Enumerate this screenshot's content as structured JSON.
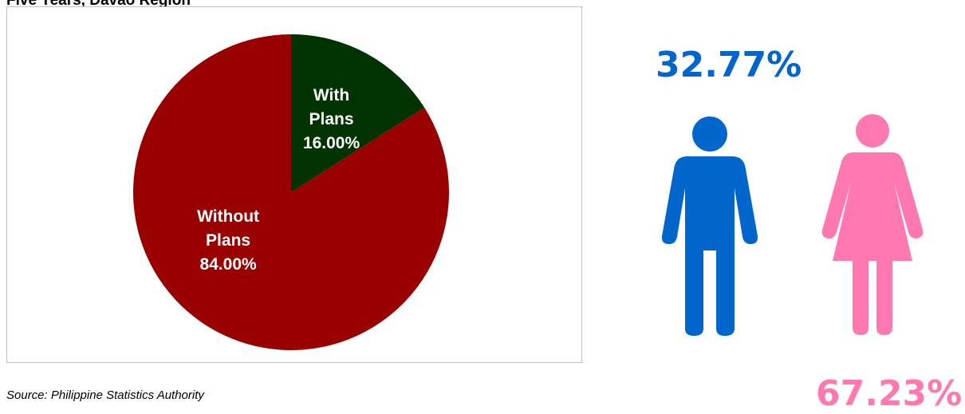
{
  "title": "Five Years, Davao Region",
  "source": "Source: Philippine Statistics Authority",
  "colors": {
    "with_plans": "#003300",
    "without_plans": "#990000",
    "male": "#0066cc",
    "female": "#ff79b0"
  },
  "chart_data": {
    "type": "pie",
    "slices": [
      {
        "label_lines": [
          "With",
          "Plans"
        ],
        "value": 16.0,
        "value_label": "16.00%",
        "color": "#003300"
      },
      {
        "label_lines": [
          "Without",
          "Plans"
        ],
        "value": 84.0,
        "value_label": "84.00%",
        "color": "#990000"
      }
    ]
  },
  "gender": {
    "male_percent": "32.77%",
    "female_percent": "67.23%",
    "male_icon": "male-person-icon",
    "female_icon": "female-person-icon"
  }
}
